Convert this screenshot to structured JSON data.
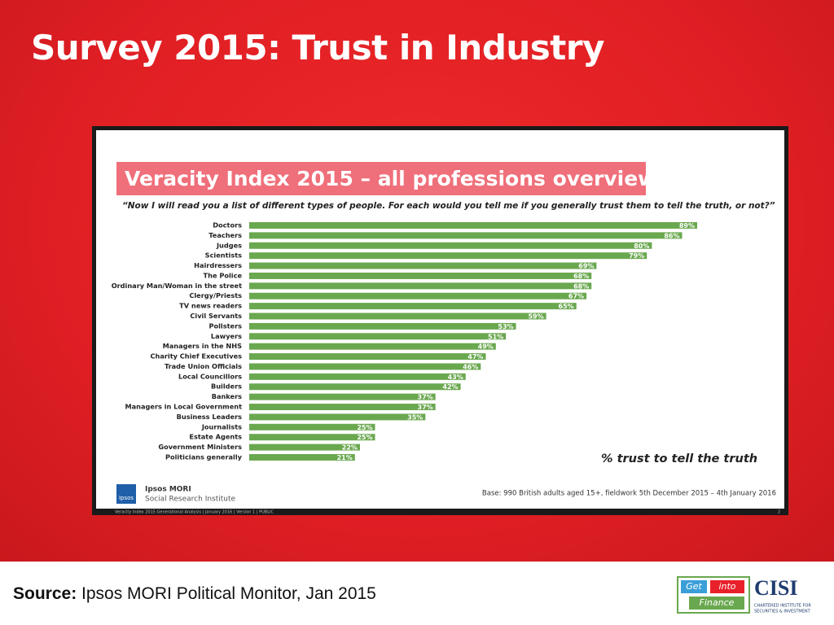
{
  "slide": {
    "title": "Survey 2015: Trust in Industry",
    "source_label": "Source:",
    "source_text": "Ipsos MORI Political Monitor, Jan 2015",
    "logo": {
      "get": "Get",
      "into": "into",
      "finance": "Finance",
      "cisi": "CISI",
      "cisi_line1": "CHARTERED INSTITUTE FOR",
      "cisi_line2": "SECURITIES & INVESTMENT"
    }
  },
  "chart_data": {
    "type": "bar",
    "title": "Veracity Index 2015 – all professions overview",
    "subtitle": "“Now I will read you a list of different types of people. For each would you tell me if you generally trust them to tell the truth, or not?”",
    "categories": [
      "Doctors",
      "Teachers",
      "Judges",
      "Scientists",
      "Hairdressers",
      "The Police",
      "Ordinary Man/Woman in the street",
      "Clergy/Priests",
      "TV news readers",
      "Civil Servants",
      "Pollsters",
      "Lawyers",
      "Managers in the NHS",
      "Charity Chief Executives",
      "Trade Union Officials",
      "Local Councillors",
      "Builders",
      "Bankers",
      "Managers in Local Government",
      "Business Leaders",
      "Journalists",
      "Estate Agents",
      "Government Ministers",
      "Politicians generally"
    ],
    "values": [
      89,
      86,
      80,
      79,
      69,
      68,
      68,
      67,
      65,
      59,
      53,
      51,
      49,
      47,
      46,
      43,
      42,
      37,
      37,
      35,
      25,
      25,
      22,
      21
    ],
    "value_labels": [
      "89%",
      "86%",
      "80%",
      "79%",
      "69%",
      "68%",
      "68%",
      "67%",
      "65%",
      "59%",
      "53%",
      "51%",
      "49%",
      "47%",
      "46%",
      "43%",
      "42%",
      "37%",
      "37%",
      "35%",
      "25%",
      "25%",
      "22%",
      "21%"
    ],
    "color": "#6aa84f",
    "orientation": "horizontal",
    "value_axis_label": "% trust to tell the truth",
    "base_note": "Base: 990 British adults aged 15+, fieldwork 5th December 2015 – 4th January 2016",
    "brand": "Ipsos MORI",
    "brand_sub": "Social Research Institute",
    "brand_logo": "Ipsos",
    "footer": "Veracity Index 2015 Generational Analysis | January 2016 | Version 1 | PUBLIC",
    "page_number": "2"
  }
}
